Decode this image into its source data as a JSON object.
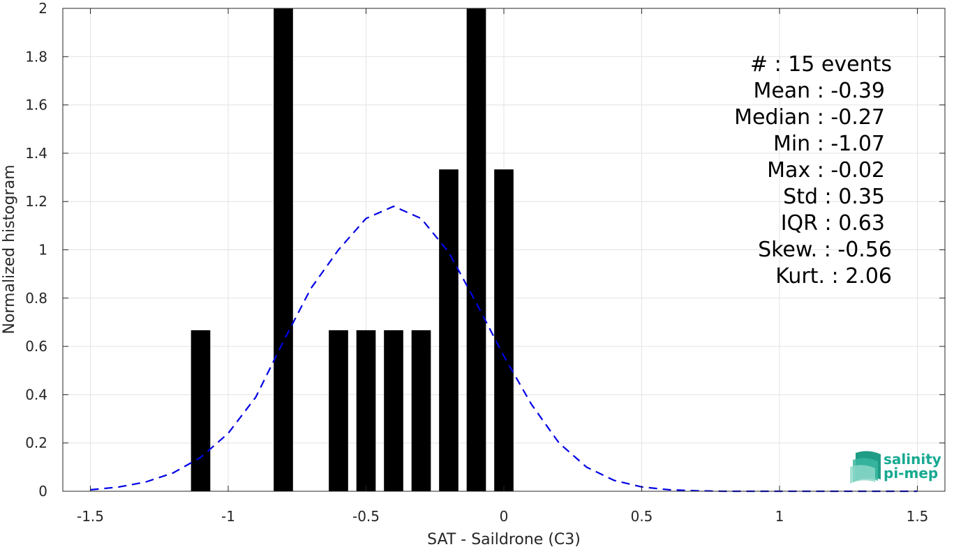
{
  "chart_data": {
    "type": "bar",
    "xlabel": "SAT - Saildrone (C3)",
    "ylabel": "Normalized histogram",
    "xlim": [
      -1.6,
      1.6
    ],
    "ylim": [
      0,
      2
    ],
    "xticks": [
      -1.5,
      -1,
      -0.5,
      0,
      0.5,
      1,
      1.5
    ],
    "xtick_labels": [
      "-1.5",
      "-1",
      "-0.5",
      "0",
      "0.5",
      "1",
      "1.5"
    ],
    "yticks": [
      0,
      0.2,
      0.4,
      0.6,
      0.8,
      1,
      1.2,
      1.4,
      1.6,
      1.8,
      2
    ],
    "ytick_labels": [
      "0",
      "0.2",
      "0.4",
      "0.6",
      "0.8",
      "1",
      "1.2",
      "1.4",
      "1.6",
      "1.8",
      "2"
    ],
    "grid": true,
    "bar_width": 0.07,
    "bars": [
      {
        "x": -1.1,
        "value": 0.667
      },
      {
        "x": -0.8,
        "value": 2.0
      },
      {
        "x": -0.6,
        "value": 0.667
      },
      {
        "x": -0.5,
        "value": 0.667
      },
      {
        "x": -0.4,
        "value": 0.667
      },
      {
        "x": -0.3,
        "value": 0.667
      },
      {
        "x": -0.2,
        "value": 1.333
      },
      {
        "x": -0.1,
        "value": 2.0
      },
      {
        "x": 0.0,
        "value": 1.333
      }
    ],
    "series": [
      {
        "style": "dashed",
        "color": "#0000e6",
        "x": [
          -1.5,
          -1.4,
          -1.3,
          -1.2,
          -1.1,
          -1.0,
          -0.9,
          -0.8,
          -0.7,
          -0.6,
          -0.5,
          -0.4,
          -0.3,
          -0.2,
          -0.1,
          0.0,
          0.1,
          0.2,
          0.3,
          0.4,
          0.5,
          0.6,
          0.7,
          0.8,
          0.9,
          1.0,
          1.1,
          1.2,
          1.3,
          1.4,
          1.5
        ],
        "y": [
          0.006,
          0.017,
          0.038,
          0.076,
          0.14,
          0.24,
          0.39,
          0.62,
          0.84,
          1.0,
          1.13,
          1.18,
          1.13,
          0.99,
          0.78,
          0.56,
          0.36,
          0.2,
          0.1,
          0.045,
          0.018,
          0.006,
          0.002,
          0.0,
          0.0,
          0.0,
          0.0,
          0.0,
          0.0,
          0.0,
          0.0
        ]
      }
    ],
    "bar_color": "#000000",
    "annotations": [
      "#  : 15 events",
      "Mean : -0.39",
      "Median : -0.27",
      "Min : -1.07",
      "Max : -0.02",
      "Std : 0.35",
      "IQR : 0.63",
      "Skew. : -0.56",
      "Kurt. : 2.06"
    ]
  },
  "logo": {
    "line1": "salinity",
    "line2": "pi-mep",
    "color": "#17a991"
  }
}
